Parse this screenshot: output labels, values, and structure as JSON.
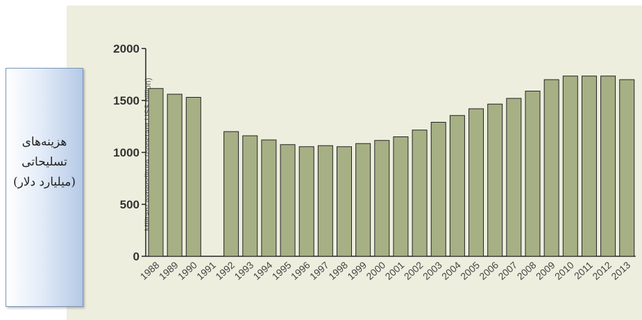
{
  "chart_data": {
    "type": "bar",
    "title": "",
    "ylabel_rotated": "Military expenditure (constant US$ billion)",
    "ylabel_overlay": "هزینه‌های تسلیحاتی (میلیارد دلار)",
    "xlabel": "",
    "ylim": [
      0,
      2000
    ],
    "yticks": [
      "0",
      "500",
      "1000",
      "1500",
      "2000"
    ],
    "categories": [
      "1988",
      "1989",
      "1990",
      "1991",
      "1992",
      "1993",
      "1994",
      "1995",
      "1996",
      "1997",
      "1998",
      "1999",
      "2000",
      "2001",
      "2002",
      "2003",
      "2004",
      "2005",
      "2006",
      "2007",
      "2008",
      "2009",
      "2010",
      "2011",
      "2012",
      "2013"
    ],
    "values": [
      1615,
      1560,
      1530,
      null,
      1200,
      1160,
      1120,
      1075,
      1055,
      1065,
      1055,
      1085,
      1115,
      1150,
      1215,
      1290,
      1355,
      1420,
      1465,
      1520,
      1590,
      1700,
      1735,
      1735,
      1735,
      1700
    ],
    "colors": {
      "bar": "#a6b084",
      "bar_stroke": "#222222",
      "panel": "#eeeedf"
    },
    "grid": false,
    "legend": "none"
  }
}
